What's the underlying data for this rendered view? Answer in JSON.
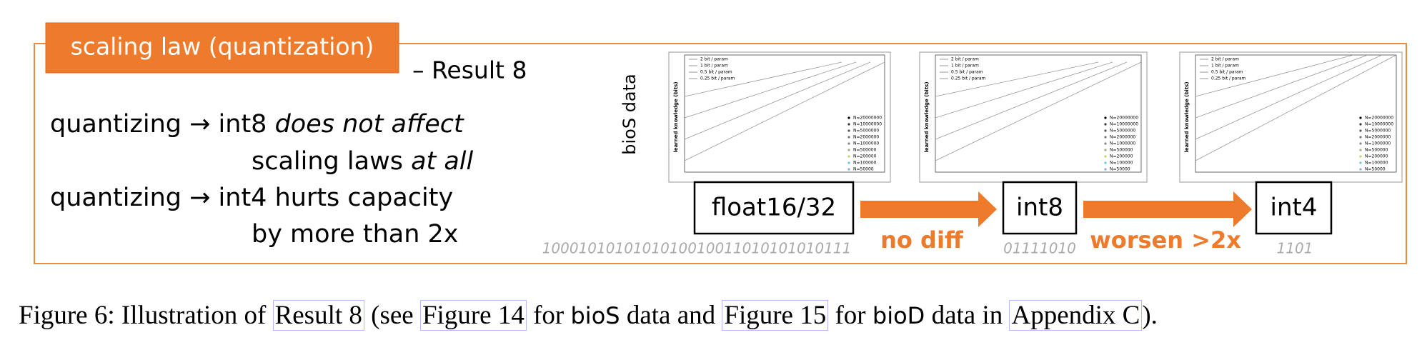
{
  "figure": {
    "tab_title": "scaling law (quantization)",
    "result_label": "– Result 8",
    "lines": [
      [
        {
          "text": "quantizing → int8 ",
          "italic": false
        },
        {
          "text": "does not affect",
          "italic": true
        }
      ],
      [
        {
          "text": "scaling laws ",
          "italic": false
        },
        {
          "text": "at all",
          "italic": true
        }
      ],
      [
        {
          "text": "quantizing → int4 hurts capacity",
          "italic": false
        }
      ],
      [
        {
          "text": "by more than 2x",
          "italic": false
        }
      ]
    ],
    "side_label": "bioS data",
    "panel_y_label": "learned knowledge (bits)",
    "panel_legend": [
      "2 bit / param",
      "1 bit / param",
      "0.5 bit / param",
      "0.25 bit / param"
    ],
    "panel_n_legend": [
      "N=20000000",
      "N=10000000",
      "N=5000000",
      "N=2000000",
      "N=1000000",
      "N=500000",
      "N=200000",
      "N=100000",
      "N=50000"
    ],
    "stages": [
      {
        "label": "float16/32",
        "bits": "1000101010101010010011010101010111"
      },
      {
        "label": "int8",
        "bits": "01111010"
      },
      {
        "label": "int4",
        "bits": "1101"
      }
    ],
    "arrows": [
      "no diff",
      "worsen >2x"
    ]
  },
  "caption": [
    {
      "text": "Figure 6: Illustration of ",
      "style": "serif"
    },
    {
      "text": "Result 8",
      "style": "link"
    },
    {
      "text": " (see ",
      "style": "serif"
    },
    {
      "text": "Figure 14",
      "style": "link"
    },
    {
      "text": " for ",
      "style": "serif"
    },
    {
      "text": "bioS",
      "style": "sans"
    },
    {
      "text": " data and ",
      "style": "serif"
    },
    {
      "text": "Figure 15",
      "style": "link"
    },
    {
      "text": " for ",
      "style": "serif"
    },
    {
      "text": "bioD",
      "style": "sans"
    },
    {
      "text": " data in ",
      "style": "serif"
    },
    {
      "text": "Appendix C",
      "style": "link"
    },
    {
      "text": ").",
      "style": "serif"
    }
  ]
}
